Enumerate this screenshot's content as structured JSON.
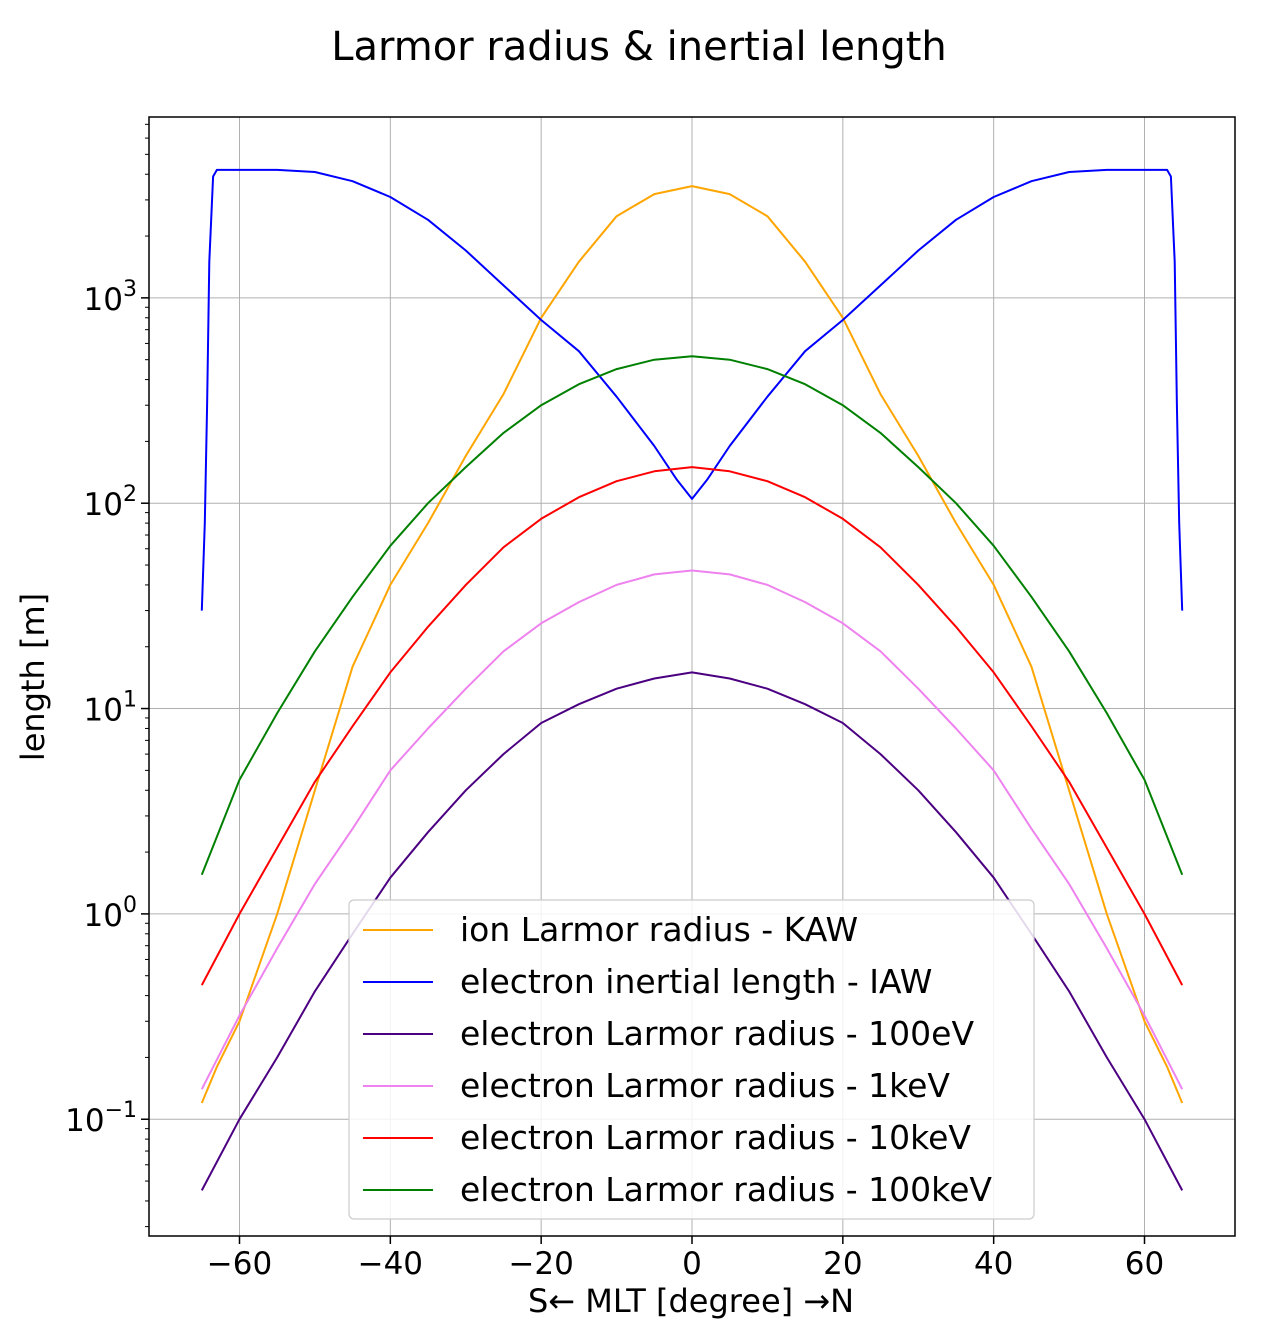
{
  "chart_data": {
    "type": "line",
    "title": "Larmor radius & inertial length",
    "xlabel": "S← MLT [degree] →N",
    "ylabel": "length [m]",
    "xlim": [
      -72,
      72
    ],
    "ylim": [
      0.027,
      7600
    ],
    "yscale": "log",
    "grid": true,
    "legend_position": "lower-center",
    "xticks": [
      -60,
      -40,
      -20,
      0,
      20,
      40,
      60
    ],
    "xtick_labels": [
      "−60",
      "−40",
      "−20",
      "0",
      "20",
      "40",
      "60"
    ],
    "yticks": [
      {
        "value": 0.1,
        "base": "10",
        "exp": "−1"
      },
      {
        "value": 1,
        "base": "10",
        "exp": "0"
      },
      {
        "value": 10,
        "base": "10",
        "exp": "1"
      },
      {
        "value": 100,
        "base": "10",
        "exp": "2"
      },
      {
        "value": 1000,
        "base": "10",
        "exp": "3"
      }
    ],
    "series": [
      {
        "name": "ion Larmor radius - KAW",
        "color": "#ffa500",
        "x": [
          0,
          5,
          10,
          15,
          20,
          25,
          30,
          35,
          40,
          45,
          50,
          55,
          60,
          63,
          65
        ],
        "y": [
          3500,
          3200,
          2500,
          1500,
          800,
          340,
          170,
          80,
          40,
          16,
          4,
          1,
          0.3,
          0.18,
          0.12
        ]
      },
      {
        "name": "electron inertial length - IAW",
        "color": "#0000ff",
        "x": [
          0,
          2,
          5,
          10,
          15,
          20,
          25,
          30,
          35,
          40,
          45,
          50,
          55,
          60,
          63,
          63.5,
          64,
          64.3,
          64.6,
          65
        ],
        "y": [
          105,
          130,
          190,
          330,
          550,
          780,
          1150,
          1700,
          2400,
          3100,
          3700,
          4100,
          4200,
          4200,
          4200,
          3900,
          1500,
          300,
          80,
          30
        ]
      },
      {
        "name": "electron Larmor radius - 100eV",
        "color": "#4b0082",
        "x": [
          0,
          5,
          10,
          15,
          20,
          25,
          30,
          35,
          40,
          45,
          50,
          55,
          60,
          65
        ],
        "y": [
          15,
          14,
          12.5,
          10.5,
          8.5,
          6,
          4,
          2.5,
          1.5,
          0.8,
          0.42,
          0.2,
          0.1,
          0.045
        ]
      },
      {
        "name": "electron Larmor radius - 1keV",
        "color": "#ee82ee",
        "x": [
          0,
          5,
          10,
          15,
          20,
          25,
          30,
          35,
          40,
          45,
          50,
          55,
          60,
          65
        ],
        "y": [
          47,
          45,
          40,
          33,
          26,
          19,
          12.5,
          8,
          5,
          2.6,
          1.4,
          0.68,
          0.32,
          0.14
        ]
      },
      {
        "name": "electron Larmor radius - 10keV",
        "color": "#ff0000",
        "x": [
          0,
          5,
          10,
          15,
          20,
          25,
          30,
          35,
          40,
          45,
          50,
          55,
          60,
          65
        ],
        "y": [
          150,
          143,
          128,
          107,
          84,
          61,
          40,
          25,
          15,
          8.2,
          4.4,
          2.1,
          1,
          0.45
        ]
      },
      {
        "name": "electron Larmor radius - 100keV",
        "color": "#008000",
        "x": [
          0,
          5,
          10,
          15,
          20,
          25,
          30,
          35,
          40,
          45,
          50,
          55,
          60,
          65
        ],
        "y": [
          520,
          500,
          450,
          380,
          300,
          220,
          150,
          100,
          62,
          35,
          19,
          9.5,
          4.5,
          1.55
        ]
      }
    ]
  }
}
